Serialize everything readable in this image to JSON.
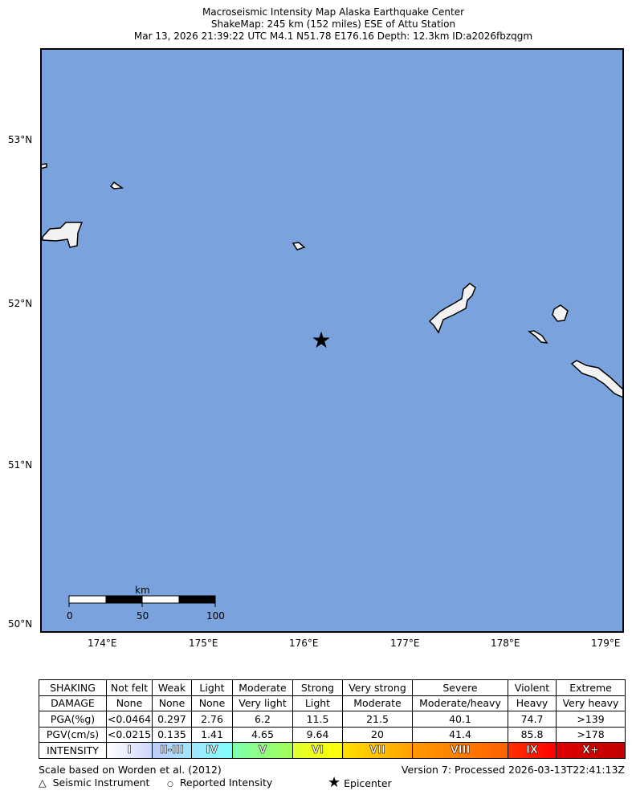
{
  "header": {
    "title": "Macroseismic Intensity Map Alaska Earthquake Center",
    "subtitle": "ShakeMap: 245 km (152 miles) ESE of Attu Station",
    "event": "Mar 13, 2026 21:39:22 UTC M4.1 N51.78 E176.16 Depth: 12.3km ID:a2026fbzqgm"
  },
  "map": {
    "ocean_color": "#7aa2dc",
    "lat_labels": [
      "53°N",
      "52°N",
      "51°N",
      "50°N"
    ],
    "lon_labels": [
      "174°E",
      "175°E",
      "176°E",
      "177°E",
      "178°E",
      "179°E"
    ],
    "scale_bar": {
      "unit": "km",
      "labels": [
        "0",
        "50",
        "100"
      ]
    },
    "epicenter": {
      "lat": 51.78,
      "lon": 176.16,
      "icon": "star-icon"
    }
  },
  "legend_table": {
    "rows": [
      {
        "label": "SHAKING",
        "cells": [
          "Not felt",
          "Weak",
          "Light",
          "Moderate",
          "Strong",
          "Very strong",
          "Severe",
          "Violent",
          "Extreme"
        ]
      },
      {
        "label": "DAMAGE",
        "cells": [
          "None",
          "None",
          "None",
          "Very light",
          "Light",
          "Moderate",
          "Moderate/heavy",
          "Heavy",
          "Very heavy"
        ]
      },
      {
        "label": "PGA(%g)",
        "cells": [
          "<0.0464",
          "0.297",
          "2.76",
          "6.2",
          "11.5",
          "21.5",
          "40.1",
          "74.7",
          ">139"
        ]
      },
      {
        "label": "PGV(cm/s)",
        "cells": [
          "<0.0215",
          "0.135",
          "1.41",
          "4.65",
          "9.64",
          "20",
          "41.4",
          "85.8",
          ">178"
        ]
      }
    ],
    "intensity": {
      "label": "INTENSITY",
      "cells": [
        "I",
        "II-III",
        "IV",
        "V",
        "VI",
        "VII",
        "VIII",
        "IX",
        "X+"
      ],
      "colors": [
        [
          "#ffffff",
          "#cdd6ff"
        ],
        [
          "#bfccff",
          "#a0e6ff"
        ],
        [
          "#a0e6ff",
          "#80ffff"
        ],
        [
          "#80ffb0",
          "#a0ff50"
        ],
        [
          "#e0ff30",
          "#ffff00"
        ],
        [
          "#ffe000",
          "#ffa000"
        ],
        [
          "#ff9a00",
          "#ff6000"
        ],
        [
          "#ff3000",
          "#ff0000"
        ],
        [
          "#e00000",
          "#c00000"
        ]
      ]
    }
  },
  "footer": {
    "scale_note": "Scale based on Worden et al. (2012)",
    "version": "Version 7: Processed 2026-03-13T22:41:13Z",
    "legend_instrument": "Seismic Instrument",
    "legend_reported": "Reported Intensity",
    "legend_epicenter": "Epicenter"
  }
}
